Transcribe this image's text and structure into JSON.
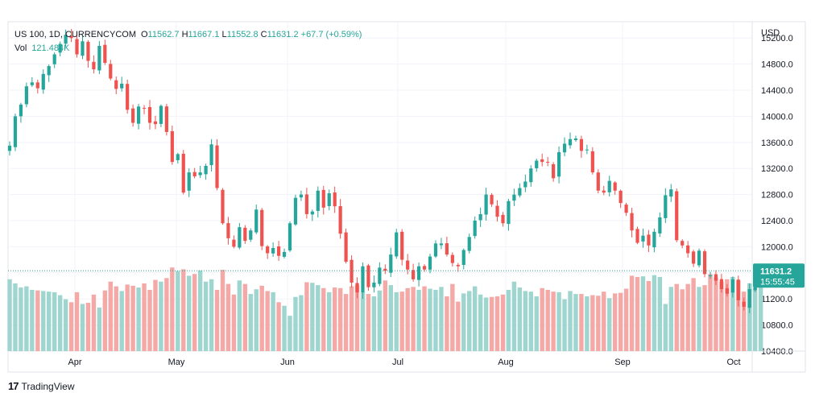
{
  "legend": {
    "symbol": "US 100, 1D, CURRENCYCOM",
    "open_label": "O",
    "open": "11562.7",
    "high_label": "H",
    "high": "11667.1",
    "low_label": "L",
    "low": "11552.8",
    "close_label": "C",
    "close": "11631.2",
    "change": "+67.7 (+0.59%)",
    "vol_label": "Vol",
    "vol": "121.484K"
  },
  "price_axis": {
    "currency": "USD",
    "ticks": [
      "15200.0",
      "14800.0",
      "14400.0",
      "14000.0",
      "13600.0",
      "13200.0",
      "12800.0",
      "12400.0",
      "12000.0",
      "11600.0",
      "11200.0",
      "10800.0",
      "10400.0"
    ]
  },
  "last_price": {
    "price": "11631.2",
    "countdown": "15:55:45"
  },
  "time_axis": {
    "months": [
      "Apr",
      "May",
      "Jun",
      "Jul",
      "Aug",
      "Sep",
      "Oct"
    ]
  },
  "footer": {
    "brand": "TradingView",
    "logo": "17"
  },
  "colors": {
    "up": "#26a69a",
    "down": "#ef5350",
    "up_vol": "#9fd5cf",
    "down_vol": "#f4a9a7",
    "grid": "#f0f3fa",
    "axis_text": "#131722"
  },
  "chart_data": {
    "type": "candlestick",
    "title": "US 100, 1D, CURRENCYCOM",
    "ylabel": "USD",
    "ylim": [
      10400,
      15450
    ],
    "grid": true,
    "months": [
      "Apr",
      "May",
      "Jun",
      "Jul",
      "Aug",
      "Sep",
      "Oct"
    ],
    "closes": [
      13550,
      14000,
      14180,
      14460,
      14520,
      14430,
      14650,
      14770,
      14950,
      15110,
      15250,
      15200,
      14950,
      15150,
      14850,
      14720,
      15080,
      14820,
      14580,
      14420,
      14500,
      14100,
      13900,
      14150,
      14120,
      13900,
      13880,
      14160,
      13760,
      13300,
      13420,
      12830,
      13140,
      13080,
      13140,
      13240,
      13570,
      12900,
      12360,
      12130,
      12000,
      12300,
      12090,
      12250,
      12570,
      12010,
      11900,
      11980,
      11860,
      11920,
      12360,
      12750,
      12800,
      12500,
      12540,
      12860,
      12600,
      12820,
      12620,
      12200,
      11770,
      11450,
      11300,
      11700,
      11380,
      11450,
      11680,
      11630,
      11880,
      12220,
      11800,
      11650,
      11500,
      11700,
      11650,
      11850,
      12050,
      12050,
      11880,
      11750,
      11700,
      11950,
      12150,
      12400,
      12500,
      12800,
      12650,
      12460,
      12360,
      12700,
      12800,
      12900,
      13000,
      13200,
      13320,
      13300,
      13290,
      13050,
      13450,
      13580,
      13650,
      13660,
      13470,
      13490,
      13140,
      12860,
      12830,
      13010,
      12860,
      12670,
      12520,
      12250,
      12060,
      12170,
      12020,
      12230,
      12450,
      12790,
      12880,
      12100,
      12020,
      11900,
      11740,
      11940,
      11580,
      11560,
      11480,
      11350,
      11280,
      11500,
      11180,
      11080,
      11350,
      11575,
      11631
    ],
    "volume_k": [
      122,
      115,
      108,
      110,
      104,
      103,
      102,
      101,
      100,
      95,
      88,
      83,
      100,
      80,
      82,
      96,
      74,
      103,
      118,
      110,
      102,
      113,
      111,
      108,
      115,
      104,
      121,
      118,
      124,
      142,
      136,
      139,
      128,
      131,
      137,
      118,
      122,
      104,
      138,
      114,
      96,
      120,
      114,
      97,
      105,
      111,
      102,
      100,
      83,
      77,
      60,
      92,
      95,
      117,
      116,
      112,
      107,
      100,
      108,
      107,
      97,
      110,
      112,
      100,
      97,
      93,
      103,
      120,
      112,
      100,
      101,
      107,
      109,
      104,
      110,
      106,
      104,
      109,
      93,
      114,
      84,
      98,
      102,
      110,
      96,
      91,
      92,
      93,
      96,
      104,
      118,
      108,
      102,
      101,
      93,
      107,
      104,
      101,
      100,
      88,
      102,
      97,
      97,
      93,
      95,
      94,
      101,
      90,
      98,
      99,
      106,
      128,
      126,
      127,
      119,
      129,
      126,
      80,
      109,
      114,
      105,
      114,
      124,
      109,
      112,
      131,
      125,
      118,
      122,
      126,
      120,
      101,
      115,
      107,
      121
    ]
  }
}
